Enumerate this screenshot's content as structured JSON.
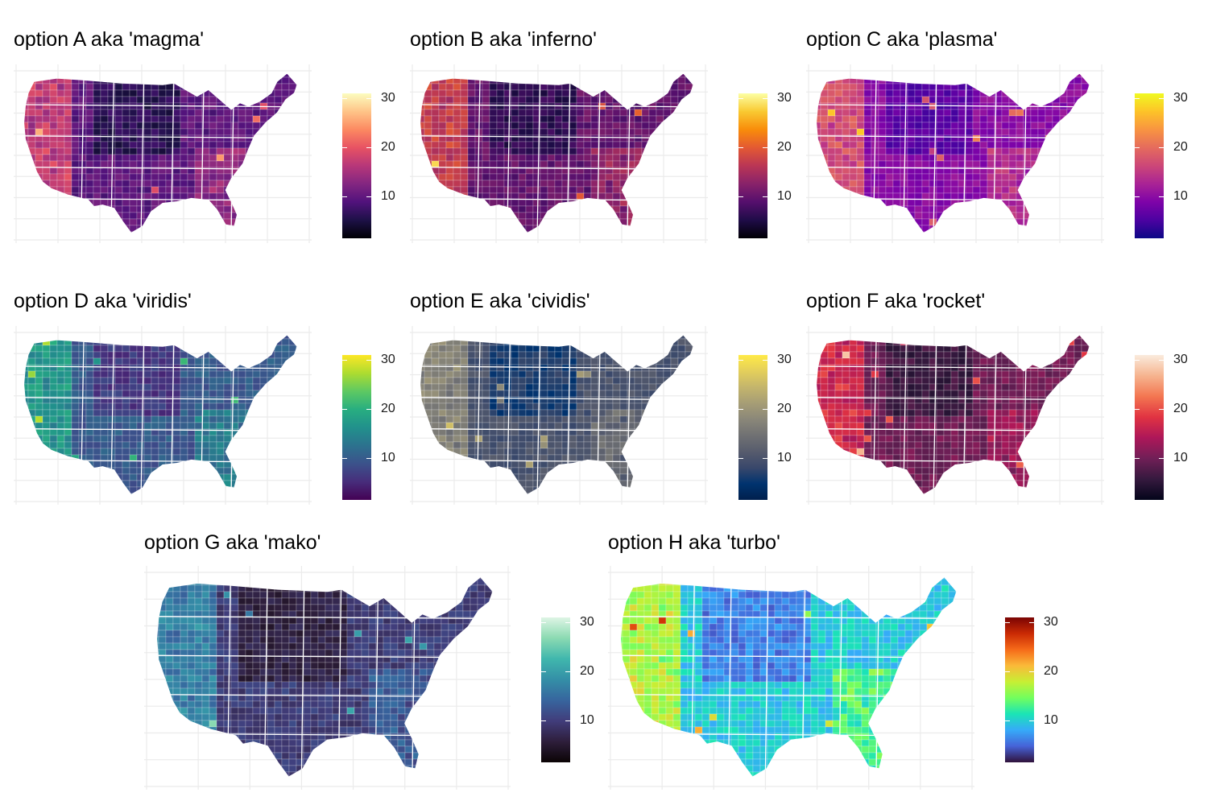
{
  "legend": {
    "ticks": [
      "10",
      "20",
      "30"
    ],
    "tick_values": [
      10,
      20,
      30
    ],
    "range": [
      1.5,
      31
    ]
  },
  "panels": [
    {
      "id": "A",
      "title": "option A aka 'magma'",
      "stops": [
        "#000004",
        "#1d1147",
        "#51127c",
        "#832681",
        "#b73779",
        "#e75263",
        "#fc8961",
        "#fec488",
        "#fcfdbf"
      ]
    },
    {
      "id": "B",
      "title": "option B aka 'inferno'",
      "stops": [
        "#000004",
        "#1f0c48",
        "#550f6d",
        "#88226a",
        "#ba3655",
        "#e35933",
        "#f98c0a",
        "#f9c932",
        "#fcffa4"
      ]
    },
    {
      "id": "C",
      "title": "option C aka 'plasma'",
      "stops": [
        "#0d0887",
        "#4c02a1",
        "#7e03a8",
        "#a92395",
        "#cc4778",
        "#e56b5d",
        "#f89441",
        "#fdc328",
        "#f0f921"
      ]
    },
    {
      "id": "D",
      "title": "option D aka 'viridis'",
      "stops": [
        "#440154",
        "#472d7b",
        "#3b528b",
        "#2c728e",
        "#21918c",
        "#28ae80",
        "#5ec962",
        "#addc30",
        "#fde725"
      ]
    },
    {
      "id": "E",
      "title": "option E aka 'cividis'",
      "stops": [
        "#00204d",
        "#00336f",
        "#39486b",
        "#575c6d",
        "#707173",
        "#8a8779",
        "#a69d75",
        "#c4b56c",
        "#e4cf5b",
        "#ffea46"
      ]
    },
    {
      "id": "F",
      "title": "option F aka 'rocket'",
      "stops": [
        "#03051a",
        "#35193e",
        "#701f57",
        "#ad1759",
        "#e13342",
        "#f37651",
        "#f6b48f",
        "#faebdd"
      ]
    },
    {
      "id": "G",
      "title": "option G aka 'mako'",
      "stops": [
        "#0b0405",
        "#2e1e3b",
        "#413d7b",
        "#37659e",
        "#348fa7",
        "#40b7ad",
        "#8bdab2",
        "#def5e5"
      ]
    },
    {
      "id": "H",
      "title": "option H aka 'turbo'",
      "stops": [
        "#30123b",
        "#4662d7",
        "#36aaf9",
        "#1ae4b6",
        "#72fe5e",
        "#c7ef34",
        "#faba39",
        "#f66b19",
        "#ca2a04",
        "#7a0403"
      ]
    }
  ]
}
